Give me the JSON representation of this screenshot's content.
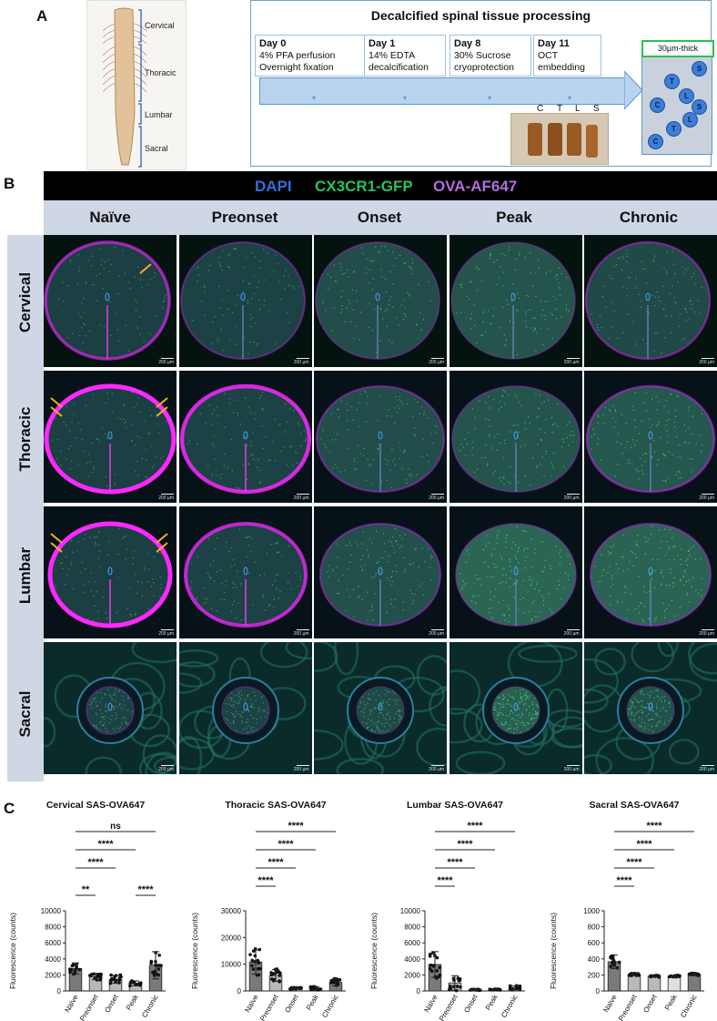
{
  "panels": {
    "a": "A",
    "b": "B",
    "c": "C"
  },
  "panel_a": {
    "regions": [
      "Cervical",
      "Thoracic",
      "Lumbar",
      "Sacral"
    ],
    "flow_title": "Decalcified spinal tissue processing",
    "days": [
      {
        "day": "Day 0",
        "line1": "4% PFA perfusion",
        "line2": "Overnight fixation"
      },
      {
        "day": "Day 1",
        "line1": "14% EDTA",
        "line2": "decalcification"
      },
      {
        "day": "Day 8",
        "line1": "30% Sucrose",
        "line2": "cryoprotection"
      },
      {
        "day": "Day 11",
        "line1": "OCT",
        "line2": "embedding"
      }
    ],
    "photo_labels": [
      "C",
      "T",
      "L",
      "S"
    ],
    "slide_label": "30µm-thick",
    "slide_dots": [
      "S",
      "T",
      "L",
      "C",
      "S",
      "T",
      "L",
      "C"
    ]
  },
  "panel_b": {
    "channels": [
      {
        "label": "DAPI",
        "color": "#2f6fe0"
      },
      {
        "label": "CX3CR1-GFP",
        "color": "#22c55e"
      },
      {
        "label": "OVA-AF647",
        "color": "#b56ce0"
      }
    ],
    "stages": [
      "Naïve",
      "Preonset",
      "Onset",
      "Peak",
      "Chronic"
    ],
    "regions": [
      "Cervical",
      "Thoracic",
      "Lumbar",
      "Sacral"
    ],
    "scale_label": "200 µm"
  },
  "chart_data": [
    {
      "type": "bar",
      "title": "Cervical SAS-OVA647",
      "ylabel": "Fluorescence (counts)",
      "categories": [
        "Naïve",
        "Preonset",
        "Onset",
        "Peak",
        "Chronic"
      ],
      "values": [
        2800,
        1800,
        1450,
        950,
        3200
      ],
      "errors": [
        700,
        400,
        500,
        300,
        1700
      ],
      "ylim": [
        0,
        10000
      ],
      "yticks": [
        0,
        2000,
        4000,
        6000,
        8000,
        10000
      ],
      "bar_colors": [
        "#7a7a7a",
        "#b9b9b9",
        "#b9b9b9",
        "#b9b9b9",
        "#7a7a7a"
      ],
      "comparisons": [
        {
          "from": 0,
          "to": 1,
          "label": "**"
        },
        {
          "from": 3,
          "to": 4,
          "label": "****"
        },
        {
          "from": 0,
          "to": 2,
          "label": "****"
        },
        {
          "from": 0,
          "to": 3,
          "label": "****"
        },
        {
          "from": 0,
          "to": 4,
          "label": "ns"
        }
      ]
    },
    {
      "type": "bar",
      "title": "Thoracic SAS-OVA647",
      "ylabel": "Fluorescence (counts)",
      "categories": [
        "Naïve",
        "Preonset",
        "Onset",
        "Peak",
        "Chronic"
      ],
      "values": [
        10800,
        5800,
        1000,
        1000,
        3200
      ],
      "errors": [
        4500,
        2200,
        300,
        600,
        1300
      ],
      "ylim": [
        0,
        30000
      ],
      "yticks": [
        0,
        10000,
        20000,
        30000
      ],
      "bar_colors": [
        "#7a7a7a",
        "#b9b9b9",
        "#b9b9b9",
        "#b9b9b9",
        "#7a7a7a"
      ],
      "comparisons": [
        {
          "from": 0,
          "to": 1,
          "label": "****"
        },
        {
          "from": 0,
          "to": 2,
          "label": "****"
        },
        {
          "from": 0,
          "to": 3,
          "label": "****"
        },
        {
          "from": 0,
          "to": 4,
          "label": "****"
        }
      ]
    },
    {
      "type": "bar",
      "title": "Lumbar SAS-OVA647",
      "ylabel": "Fluorescence (counts)",
      "categories": [
        "Naïve",
        "Preonset",
        "Onset",
        "Peak",
        "Chronic"
      ],
      "values": [
        3300,
        1000,
        150,
        180,
        400
      ],
      "errors": [
        1600,
        900,
        60,
        60,
        250
      ],
      "ylim": [
        0,
        10000
      ],
      "yticks": [
        0,
        2000,
        4000,
        6000,
        8000,
        10000
      ],
      "bar_colors": [
        "#7a7a7a",
        "#b9b9b9",
        "#b9b9b9",
        "#b9b9b9",
        "#7a7a7a"
      ],
      "comparisons": [
        {
          "from": 0,
          "to": 1,
          "label": "****"
        },
        {
          "from": 0,
          "to": 2,
          "label": "****"
        },
        {
          "from": 0,
          "to": 3,
          "label": "****"
        },
        {
          "from": 0,
          "to": 4,
          "label": "****"
        }
      ]
    },
    {
      "type": "bar",
      "title": "Sacral SAS-OVA647",
      "ylabel": "Fluorescence (counts)",
      "categories": [
        "Naïve",
        "Preonset",
        "Onset",
        "Peak",
        "Chronic"
      ],
      "values": [
        365,
        205,
        185,
        185,
        205
      ],
      "errors": [
        85,
        15,
        10,
        10,
        15
      ],
      "ylim": [
        0,
        1000
      ],
      "yticks": [
        0,
        200,
        400,
        600,
        800,
        1000
      ],
      "bar_colors": [
        "#7a7a7a",
        "#b9b9b9",
        "#b9b9b9",
        "#e0e0e0",
        "#7a7a7a"
      ],
      "comparisons": [
        {
          "from": 0,
          "to": 1,
          "label": "****"
        },
        {
          "from": 0,
          "to": 2,
          "label": "****"
        },
        {
          "from": 0,
          "to": 3,
          "label": "****"
        },
        {
          "from": 0,
          "to": 4,
          "label": "****"
        }
      ]
    }
  ]
}
